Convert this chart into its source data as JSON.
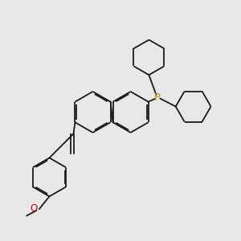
{
  "bg_color": "#e8e8e8",
  "bond_color": "#1a1a1a",
  "P_color": "#cc8800",
  "O_color": "#cc0000",
  "lw": 1.3,
  "dbo": 0.055,
  "fs": 8.5
}
